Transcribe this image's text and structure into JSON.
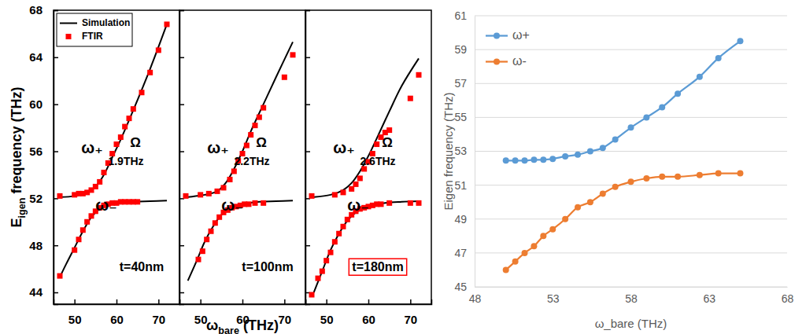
{
  "chart_data": [
    {
      "type": "line",
      "xlim": [
        45,
        75
      ],
      "ylim": [
        43,
        68
      ],
      "xticks": [
        50,
        60,
        70
      ],
      "yticks": [
        44,
        48,
        52,
        56,
        60,
        64,
        68
      ],
      "ylabel": "Eigen frequency (THz)",
      "legend": "upper left",
      "annotations": [
        "ω₊",
        "Ω",
        "1.9THz",
        "ω₋",
        "t=40nm"
      ],
      "series": [
        {
          "name": "Simulation",
          "type": "line",
          "color": "#000000",
          "x": [
            46.5,
            48,
            50,
            52,
            54,
            56,
            58,
            60,
            64,
            68,
            72
          ],
          "values": [
            45.3,
            46.4,
            47.8,
            49.2,
            50.4,
            51.1,
            51.4,
            51.55,
            51.7,
            51.75,
            51.8
          ]
        },
        {
          "type": "line",
          "color": "#000000",
          "x": [
            46.5,
            50,
            53,
            55,
            57,
            59,
            61,
            64,
            68,
            72
          ],
          "values": [
            52.1,
            52.2,
            52.5,
            53.0,
            54.0,
            55.5,
            57.0,
            59.5,
            63.0,
            66.8
          ]
        },
        {
          "name": "FTIR",
          "type": "scatter",
          "color": "#ff0000",
          "marker": "square",
          "x": [
            46.5,
            50,
            51,
            52,
            53,
            54,
            55,
            56,
            57,
            58,
            59,
            60,
            61,
            62,
            63,
            64,
            65,
            46.5,
            50,
            51,
            52,
            53,
            54,
            55,
            56,
            57,
            58,
            59,
            60,
            61,
            62,
            63,
            64,
            66,
            68,
            70,
            72
          ],
          "values": [
            45.4,
            47.6,
            48.5,
            49.3,
            50,
            50.5,
            50.9,
            51.2,
            51.4,
            51.5,
            51.6,
            51.6,
            51.7,
            51.7,
            51.7,
            51.7,
            51.7,
            52.2,
            52.3,
            52.4,
            52.4,
            52.5,
            52.7,
            53,
            53.4,
            54.2,
            55,
            55.8,
            56.6,
            57.2,
            58.1,
            58.8,
            59.6,
            61,
            62.7,
            64.6,
            66.8
          ]
        }
      ]
    },
    {
      "type": "line",
      "xlim": [
        45,
        75
      ],
      "ylim": [
        43,
        68
      ],
      "xticks": [
        50,
        60,
        70
      ],
      "yticks": [
        44,
        48,
        52,
        56,
        60,
        64,
        68
      ],
      "xlabel": "ωbare (THz)",
      "tick_labels": "x",
      "annotations": [
        "ω₊",
        "Ω",
        "2.2THz",
        "ω₋",
        "t=100nm"
      ],
      "series": [
        {
          "type": "line",
          "color": "#000000",
          "x": [
            47,
            49,
            51,
            53,
            55,
            57,
            60,
            64,
            68,
            72
          ],
          "values": [
            45.0,
            46.6,
            48.3,
            49.6,
            50.6,
            51.1,
            51.5,
            51.7,
            51.75,
            51.8
          ]
        },
        {
          "type": "line",
          "color": "#000000",
          "x": [
            47,
            51,
            54,
            56,
            58,
            60,
            62,
            65,
            68,
            72
          ],
          "values": [
            52.1,
            52.3,
            52.6,
            53.3,
            54.5,
            56.0,
            57.7,
            60.0,
            62.3,
            65.3
          ]
        },
        {
          "type": "scatter",
          "color": "#ff0000",
          "marker": "square",
          "x": [
            49.5,
            50.5,
            51.5,
            52.5,
            53.5,
            54.5,
            55.5,
            56.5,
            57.5,
            58.5,
            59.5,
            60.5,
            61.5,
            63,
            65,
            46.5,
            50,
            52,
            54,
            55.5,
            57,
            58,
            59,
            60,
            61,
            62,
            63,
            64,
            65,
            70,
            72
          ],
          "values": [
            46.8,
            47.5,
            48.5,
            49.2,
            49.9,
            50.4,
            50.8,
            51.0,
            51.2,
            51.3,
            51.4,
            51.5,
            51.5,
            51.6,
            51.6,
            52.2,
            52.3,
            52.4,
            52.6,
            52.9,
            53.6,
            54.3,
            55.2,
            55.8,
            56.5,
            57.4,
            58.2,
            58.9,
            59.7,
            62.3,
            64.2
          ]
        }
      ]
    },
    {
      "type": "line",
      "xlim": [
        45,
        75
      ],
      "ylim": [
        43,
        68
      ],
      "xticks": [
        50,
        60,
        70
      ],
      "yticks": [
        44,
        48,
        52,
        56,
        60,
        64,
        68
      ],
      "tick_labels": "x",
      "annotations": [
        "ω₊",
        "Ω",
        "2.6THz",
        "ω₋",
        "t=180nm"
      ],
      "series": [
        {
          "type": "line",
          "color": "#000000",
          "x": [
            47,
            49,
            51,
            53,
            55,
            57,
            60,
            64,
            68,
            72
          ],
          "values": [
            44.0,
            45.8,
            47.6,
            49.0,
            50.1,
            50.8,
            51.3,
            51.6,
            51.7,
            51.75
          ]
        },
        {
          "type": "line",
          "color": "#000000",
          "x": [
            47,
            51,
            54,
            56,
            58,
            60,
            62,
            65,
            68,
            72
          ],
          "values": [
            52.1,
            52.3,
            52.7,
            53.3,
            54.3,
            55.6,
            57.1,
            59.4,
            61.6,
            63.9
          ]
        },
        {
          "type": "scatter",
          "color": "#ff0000",
          "marker": "square",
          "x": [
            46.5,
            48,
            49,
            50,
            51,
            52,
            53,
            54,
            55,
            56,
            57,
            58,
            59,
            60,
            61,
            62,
            63,
            65,
            70,
            72,
            46.5,
            52,
            54,
            56,
            57,
            58,
            59,
            60,
            61,
            62,
            63,
            64,
            65,
            70,
            72
          ],
          "values": [
            43.8,
            45.2,
            45.8,
            46.7,
            47.4,
            48.3,
            49.0,
            49.6,
            50.2,
            50.6,
            50.9,
            51.1,
            51.2,
            51.3,
            51.4,
            51.5,
            51.5,
            51.6,
            51.6,
            51.6,
            52.2,
            52.3,
            52.5,
            52.8,
            53.2,
            53.7,
            54.5,
            55.1,
            55.8,
            56.6,
            57.2,
            57.6,
            57.8,
            60.5,
            62.5
          ]
        }
      ]
    },
    {
      "type": "line",
      "xlabel": "ω_bare (THz)",
      "ylabel": "Eigen frequency (THz)",
      "xlim": [
        48,
        68
      ],
      "ylim": [
        45,
        61
      ],
      "xticks": [
        48,
        53,
        58,
        63,
        68
      ],
      "yticks": [
        45,
        47,
        49,
        51,
        53,
        55,
        57,
        59,
        61
      ],
      "grid": true,
      "legend": "upper left",
      "marker": "circle",
      "x": [
        50,
        50.6,
        51.2,
        51.8,
        52.4,
        53,
        53.8,
        54.6,
        55.4,
        56.2,
        57,
        58,
        59,
        60,
        61,
        62.4,
        63.6,
        65
      ],
      "series": [
        {
          "name": "ω+",
          "color": "#5b9bd5",
          "values": [
            52.45,
            52.45,
            52.45,
            52.5,
            52.5,
            52.55,
            52.7,
            52.8,
            53.0,
            53.2,
            53.7,
            54.4,
            55.0,
            55.6,
            56.4,
            57.4,
            58.5,
            59.5
          ]
        },
        {
          "name": "ω-",
          "color": "#ed7d31",
          "values": [
            46.0,
            46.5,
            47.0,
            47.4,
            48.0,
            48.4,
            49.0,
            49.7,
            50.0,
            50.5,
            50.9,
            51.2,
            51.4,
            51.5,
            51.5,
            51.6,
            51.7,
            51.7
          ]
        }
      ]
    }
  ]
}
